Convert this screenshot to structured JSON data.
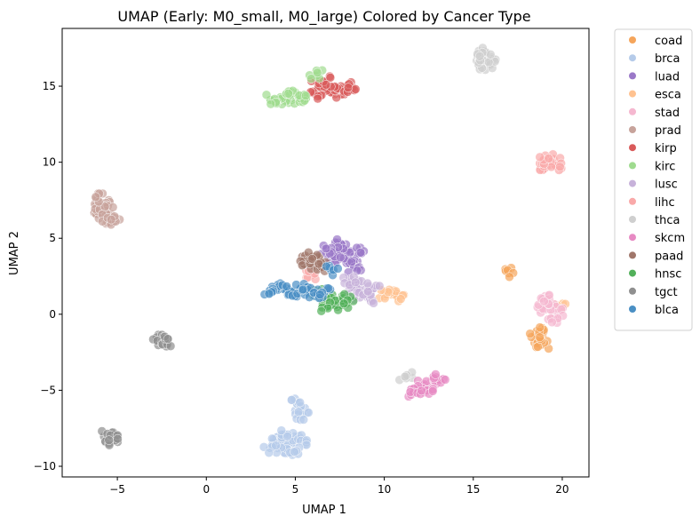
{
  "chart_data": {
    "type": "scatter",
    "title": "UMAP (Early: M0_small, M0_large) Colored by Cancer Type",
    "xlabel": "UMAP 1",
    "ylabel": "UMAP 2",
    "xlim": [
      -8.1,
      21.5
    ],
    "ylim": [
      -10.7,
      18.8
    ],
    "xticks": [
      -5,
      0,
      5,
      10,
      15,
      20
    ],
    "yticks": [
      -10,
      -5,
      0,
      5,
      10,
      15
    ],
    "xtick_labels": [
      "−5",
      "0",
      "5",
      "10",
      "15",
      "20"
    ],
    "ytick_labels": [
      "−10",
      "−5",
      "0",
      "5",
      "10",
      "15"
    ],
    "grid": false,
    "legend_position": "outside-right",
    "series": [
      {
        "name": "coad",
        "color": "#f5a55b",
        "points": [
          [
            18.7,
            -1.6
          ],
          [
            18.5,
            -1.3
          ],
          [
            18.9,
            -2.0
          ],
          [
            18.6,
            -1.9
          ],
          [
            18.8,
            -1.2
          ],
          [
            17.0,
            2.7
          ]
        ]
      },
      {
        "name": "brca",
        "color": "#b5cbe9",
        "points": [
          [
            4.8,
            -8.4
          ],
          [
            4.2,
            -8.6
          ],
          [
            5.2,
            -8.0
          ],
          [
            4.6,
            -8.9
          ],
          [
            5.5,
            -8.3
          ],
          [
            3.9,
            -8.3
          ],
          [
            5.3,
            -6.3
          ],
          [
            5.1,
            -5.9
          ],
          [
            5.4,
            -6.6
          ],
          [
            4.4,
            -7.9
          ],
          [
            5.0,
            -9.1
          ],
          [
            3.6,
            -8.8
          ]
        ]
      },
      {
        "name": "luad",
        "color": "#9a78c8",
        "points": [
          [
            7.3,
            4.0
          ],
          [
            7.8,
            4.3
          ],
          [
            8.3,
            3.8
          ],
          [
            7.0,
            3.6
          ],
          [
            7.6,
            4.6
          ],
          [
            8.6,
            4.1
          ],
          [
            6.8,
            4.3
          ],
          [
            7.9,
            3.5
          ],
          [
            8.3,
            3.1
          ]
        ]
      },
      {
        "name": "esca",
        "color": "#ffc290",
        "points": [
          [
            10.4,
            1.3
          ],
          [
            10.7,
            1.2
          ],
          [
            10.1,
            1.3
          ],
          [
            19.9,
            0.4
          ]
        ]
      },
      {
        "name": "stad",
        "color": "#f5b8d0",
        "points": [
          [
            19.4,
            0.6
          ],
          [
            19.0,
            0.3
          ],
          [
            19.7,
            0.1
          ],
          [
            19.2,
            0.9
          ],
          [
            19.5,
            -0.3
          ],
          [
            18.9,
            1.0
          ]
        ]
      },
      {
        "name": "prad",
        "color": "#c7a39b",
        "points": [
          [
            -6.0,
            6.9
          ],
          [
            -5.8,
            7.3
          ],
          [
            -6.2,
            6.6
          ],
          [
            -5.6,
            6.8
          ],
          [
            -6.1,
            7.6
          ],
          [
            -5.5,
            6.3
          ],
          [
            -5.2,
            6.1
          ]
        ]
      },
      {
        "name": "kirp",
        "color": "#d95a5a",
        "points": [
          [
            7.5,
            14.7
          ],
          [
            7.9,
            15.0
          ],
          [
            7.0,
            14.6
          ],
          [
            7.4,
            14.8
          ],
          [
            6.3,
            15.2
          ],
          [
            6.6,
            15.3
          ],
          [
            6.1,
            14.5
          ],
          [
            8.0,
            14.9
          ]
        ]
      },
      {
        "name": "kirc",
        "color": "#9fdb8f",
        "points": [
          [
            4.3,
            14.2
          ],
          [
            4.8,
            14.1
          ],
          [
            3.9,
            14.0
          ],
          [
            5.2,
            14.3
          ],
          [
            4.5,
            14.5
          ],
          [
            3.6,
            14.1
          ],
          [
            6.2,
            15.7
          ],
          [
            5.6,
            14.2
          ]
        ]
      },
      {
        "name": "lusc",
        "color": "#c7b2da",
        "points": [
          [
            8.7,
            1.6
          ],
          [
            9.0,
            1.4
          ],
          [
            8.4,
            1.9
          ],
          [
            8.3,
            1.2
          ],
          [
            9.2,
            1.0
          ],
          [
            8.1,
            2.1
          ],
          [
            9.4,
            1.7
          ]
        ]
      },
      {
        "name": "lihc",
        "color": "#f9a9a9",
        "points": [
          [
            19.2,
            9.9
          ],
          [
            19.5,
            10.2
          ],
          [
            19.0,
            9.6
          ],
          [
            19.6,
            9.8
          ],
          [
            18.9,
            10.1
          ],
          [
            6.0,
            2.6
          ]
        ]
      },
      {
        "name": "thca",
        "color": "#cfcfcf",
        "points": [
          [
            15.5,
            16.7
          ],
          [
            15.7,
            17.0
          ],
          [
            15.3,
            16.4
          ],
          [
            15.9,
            16.5
          ],
          [
            15.6,
            17.3
          ],
          [
            11.2,
            -4.1
          ]
        ]
      },
      {
        "name": "skcm",
        "color": "#e78ac3",
        "points": [
          [
            12.2,
            -4.7
          ],
          [
            12.6,
            -4.5
          ],
          [
            11.9,
            -4.9
          ],
          [
            12.8,
            -4.4
          ],
          [
            11.6,
            -5.1
          ],
          [
            13.1,
            -4.3
          ],
          [
            12.4,
            -5.0
          ]
        ]
      },
      {
        "name": "paad",
        "color": "#a0766a",
        "points": [
          [
            5.7,
            3.5
          ],
          [
            5.9,
            3.6
          ],
          [
            6.2,
            3.4
          ],
          [
            5.5,
            3.3
          ],
          [
            6.0,
            3.8
          ],
          [
            6.4,
            3.1
          ]
        ]
      },
      {
        "name": "hnsc",
        "color": "#52b05a",
        "points": [
          [
            7.0,
            0.7
          ],
          [
            7.3,
            0.9
          ],
          [
            6.7,
            1.1
          ],
          [
            7.6,
            0.6
          ],
          [
            6.4,
            1.3
          ],
          [
            7.9,
            1.0
          ],
          [
            6.8,
            0.5
          ]
        ]
      },
      {
        "name": "tgct",
        "color": "#8f8f8f",
        "points": [
          [
            -2.8,
            -1.7
          ],
          [
            -2.5,
            -1.8
          ],
          [
            -2.3,
            -1.8
          ],
          [
            -5.5,
            -8.0
          ],
          [
            -5.3,
            -8.2
          ],
          [
            -5.1,
            -8.3
          ]
        ]
      },
      {
        "name": "blca",
        "color": "#4a8fc4",
        "points": [
          [
            4.4,
            1.7
          ],
          [
            4.0,
            1.6
          ],
          [
            4.8,
            1.5
          ],
          [
            5.3,
            1.7
          ],
          [
            5.7,
            1.6
          ],
          [
            3.6,
            1.4
          ],
          [
            7.0,
            2.9
          ],
          [
            6.6,
            1.4
          ],
          [
            6.1,
            1.2
          ]
        ]
      }
    ]
  }
}
